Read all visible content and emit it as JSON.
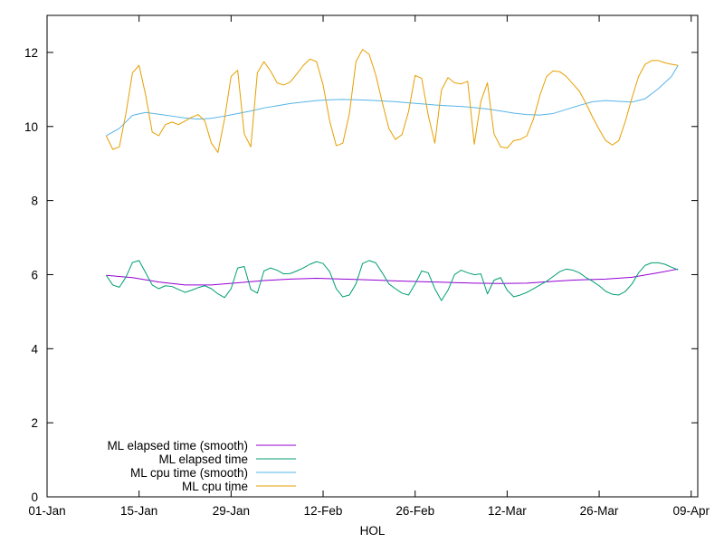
{
  "chart_data": {
    "type": "line",
    "xlabel": "HOL",
    "ylabel": "",
    "xlim": [
      "2024-01-01",
      "2024-04-09"
    ],
    "ylim": [
      0,
      13
    ],
    "x_ticks": [
      "01-Jan",
      "15-Jan",
      "29-Jan",
      "12-Feb",
      "26-Feb",
      "12-Mar",
      "26-Mar",
      "09-Apr"
    ],
    "y_ticks": [
      0,
      2,
      4,
      6,
      8,
      10,
      12
    ],
    "grid": false,
    "legend_position": "bottom-left",
    "series": [
      {
        "name": "ML elapsed time (smooth)",
        "color": "#9400d3",
        "x": [
          "2024-01-10",
          "2024-01-14",
          "2024-01-18",
          "2024-01-22",
          "2024-01-26",
          "2024-01-30",
          "2024-02-03",
          "2024-02-07",
          "2024-02-11",
          "2024-02-15",
          "2024-02-19",
          "2024-02-23",
          "2024-02-27",
          "2024-03-02",
          "2024-03-06",
          "2024-03-10",
          "2024-03-14",
          "2024-03-18",
          "2024-03-22",
          "2024-03-26",
          "2024-03-30",
          "2024-04-03",
          "2024-04-06"
        ],
        "values": [
          5.98,
          5.92,
          5.8,
          5.72,
          5.72,
          5.78,
          5.84,
          5.88,
          5.9,
          5.88,
          5.86,
          5.83,
          5.81,
          5.79,
          5.77,
          5.76,
          5.77,
          5.82,
          5.86,
          5.88,
          5.93,
          6.05,
          6.15
        ]
      },
      {
        "name": "ML elapsed time",
        "color": "#009e73",
        "x": [
          "2024-01-10",
          "2024-01-11",
          "2024-01-12",
          "2024-01-13",
          "2024-01-14",
          "2024-01-15",
          "2024-01-16",
          "2024-01-17",
          "2024-01-18",
          "2024-01-19",
          "2024-01-20",
          "2024-01-21",
          "2024-01-22",
          "2024-01-23",
          "2024-01-24",
          "2024-01-25",
          "2024-01-26",
          "2024-01-27",
          "2024-01-28",
          "2024-01-29",
          "2024-01-30",
          "2024-01-31",
          "2024-02-01",
          "2024-02-02",
          "2024-02-03",
          "2024-02-04",
          "2024-02-05",
          "2024-02-06",
          "2024-02-07",
          "2024-02-08",
          "2024-02-09",
          "2024-02-10",
          "2024-02-11",
          "2024-02-12",
          "2024-02-13",
          "2024-02-14",
          "2024-02-15",
          "2024-02-16",
          "2024-02-17",
          "2024-02-18",
          "2024-02-19",
          "2024-02-20",
          "2024-02-21",
          "2024-02-22",
          "2024-02-23",
          "2024-02-24",
          "2024-02-25",
          "2024-02-26",
          "2024-02-27",
          "2024-02-28",
          "2024-02-29",
          "2024-03-01",
          "2024-03-02",
          "2024-03-03",
          "2024-03-04",
          "2024-03-05",
          "2024-03-06",
          "2024-03-07",
          "2024-03-08",
          "2024-03-09",
          "2024-03-10",
          "2024-03-11",
          "2024-03-12",
          "2024-03-13",
          "2024-03-14",
          "2024-03-15",
          "2024-03-16",
          "2024-03-17",
          "2024-03-18",
          "2024-03-19",
          "2024-03-20",
          "2024-03-21",
          "2024-03-22",
          "2024-03-23",
          "2024-03-24",
          "2024-03-25",
          "2024-03-26",
          "2024-03-27",
          "2024-03-28",
          "2024-03-29",
          "2024-03-30",
          "2024-03-31",
          "2024-04-01",
          "2024-04-02",
          "2024-04-03",
          "2024-04-04",
          "2024-04-05",
          "2024-04-06"
        ],
        "values": [
          5.98,
          5.72,
          5.66,
          5.93,
          6.33,
          6.38,
          6.05,
          5.72,
          5.62,
          5.7,
          5.68,
          5.6,
          5.52,
          5.58,
          5.65,
          5.7,
          5.62,
          5.48,
          5.38,
          5.62,
          6.18,
          6.22,
          5.6,
          5.5,
          6.1,
          6.18,
          6.12,
          6.02,
          6.03,
          6.1,
          6.18,
          6.28,
          6.35,
          6.3,
          6.08,
          5.62,
          5.4,
          5.45,
          5.75,
          6.3,
          6.38,
          6.32,
          6.05,
          5.75,
          5.62,
          5.5,
          5.45,
          5.75,
          6.1,
          6.05,
          5.62,
          5.3,
          5.58,
          6.0,
          6.12,
          6.05,
          6.0,
          6.02,
          5.48,
          5.85,
          5.92,
          5.58,
          5.4,
          5.45,
          5.52,
          5.62,
          5.72,
          5.82,
          5.95,
          6.08,
          6.15,
          6.12,
          6.05,
          5.92,
          5.82,
          5.7,
          5.55,
          5.47,
          5.45,
          5.55,
          5.75,
          6.05,
          6.25,
          6.32,
          6.32,
          6.28,
          6.2,
          6.13
        ]
      },
      {
        "name": "ML cpu time (smooth)",
        "color": "#56b4e9",
        "x": [
          "2024-01-10",
          "2024-01-12",
          "2024-01-14",
          "2024-01-16",
          "2024-01-18",
          "2024-01-20",
          "2024-01-22",
          "2024-01-24",
          "2024-01-26",
          "2024-01-28",
          "2024-01-30",
          "2024-02-01",
          "2024-02-03",
          "2024-02-05",
          "2024-02-07",
          "2024-02-09",
          "2024-02-11",
          "2024-02-13",
          "2024-02-15",
          "2024-02-17",
          "2024-02-19",
          "2024-02-21",
          "2024-02-23",
          "2024-02-25",
          "2024-02-27",
          "2024-02-29",
          "2024-03-02",
          "2024-03-04",
          "2024-03-06",
          "2024-03-08",
          "2024-03-10",
          "2024-03-12",
          "2024-03-14",
          "2024-03-16",
          "2024-03-18",
          "2024-03-20",
          "2024-03-22",
          "2024-03-24",
          "2024-03-26",
          "2024-03-28",
          "2024-03-30",
          "2024-04-01",
          "2024-04-03",
          "2024-04-05",
          "2024-04-06"
        ],
        "values": [
          9.75,
          9.95,
          10.3,
          10.38,
          10.33,
          10.28,
          10.23,
          10.2,
          10.22,
          10.28,
          10.35,
          10.42,
          10.5,
          10.56,
          10.62,
          10.66,
          10.7,
          10.72,
          10.73,
          10.72,
          10.71,
          10.69,
          10.67,
          10.64,
          10.61,
          10.58,
          10.56,
          10.54,
          10.51,
          10.47,
          10.42,
          10.36,
          10.32,
          10.31,
          10.35,
          10.46,
          10.57,
          10.67,
          10.7,
          10.68,
          10.66,
          10.75,
          11.02,
          11.35,
          11.65
        ]
      },
      {
        "name": "ML cpu time",
        "color": "#e69f00",
        "x": [
          "2024-01-10",
          "2024-01-11",
          "2024-01-12",
          "2024-01-13",
          "2024-01-14",
          "2024-01-15",
          "2024-01-16",
          "2024-01-17",
          "2024-01-18",
          "2024-01-19",
          "2024-01-20",
          "2024-01-21",
          "2024-01-22",
          "2024-01-23",
          "2024-01-24",
          "2024-01-25",
          "2024-01-26",
          "2024-01-27",
          "2024-01-28",
          "2024-01-29",
          "2024-01-30",
          "2024-01-31",
          "2024-02-01",
          "2024-02-02",
          "2024-02-03",
          "2024-02-04",
          "2024-02-05",
          "2024-02-06",
          "2024-02-07",
          "2024-02-08",
          "2024-02-09",
          "2024-02-10",
          "2024-02-11",
          "2024-02-12",
          "2024-02-13",
          "2024-02-14",
          "2024-02-15",
          "2024-02-16",
          "2024-02-17",
          "2024-02-18",
          "2024-02-19",
          "2024-02-20",
          "2024-02-21",
          "2024-02-22",
          "2024-02-23",
          "2024-02-24",
          "2024-02-25",
          "2024-02-26",
          "2024-02-27",
          "2024-02-28",
          "2024-02-29",
          "2024-03-01",
          "2024-03-02",
          "2024-03-03",
          "2024-03-04",
          "2024-03-05",
          "2024-03-06",
          "2024-03-07",
          "2024-03-08",
          "2024-03-09",
          "2024-03-10",
          "2024-03-11",
          "2024-03-12",
          "2024-03-13",
          "2024-03-14",
          "2024-03-15",
          "2024-03-16",
          "2024-03-17",
          "2024-03-18",
          "2024-03-19",
          "2024-03-20",
          "2024-03-21",
          "2024-03-22",
          "2024-03-23",
          "2024-03-24",
          "2024-03-25",
          "2024-03-26",
          "2024-03-27",
          "2024-03-28",
          "2024-03-29",
          "2024-03-30",
          "2024-03-31",
          "2024-04-01",
          "2024-04-02",
          "2024-04-03",
          "2024-04-04",
          "2024-04-05",
          "2024-04-06"
        ],
        "values": [
          9.75,
          9.38,
          9.45,
          10.35,
          11.45,
          11.65,
          10.85,
          9.85,
          9.75,
          10.05,
          10.12,
          10.05,
          10.15,
          10.25,
          10.32,
          10.15,
          9.55,
          9.3,
          10.2,
          11.35,
          11.52,
          9.8,
          9.45,
          11.45,
          11.75,
          11.5,
          11.18,
          11.12,
          11.2,
          11.42,
          11.65,
          11.82,
          11.75,
          11.12,
          10.15,
          9.48,
          9.55,
          10.35,
          11.75,
          12.08,
          11.95,
          11.4,
          10.65,
          9.95,
          9.65,
          9.78,
          10.4,
          11.38,
          11.3,
          10.3,
          9.55,
          10.98,
          11.32,
          11.18,
          11.15,
          11.22,
          9.52,
          10.68,
          11.18,
          9.8,
          9.45,
          9.42,
          9.62,
          9.65,
          9.75,
          10.2,
          10.85,
          11.35,
          11.5,
          11.48,
          11.35,
          11.15,
          10.95,
          10.62,
          10.25,
          9.92,
          9.62,
          9.5,
          9.62,
          10.15,
          10.78,
          11.35,
          11.68,
          11.78,
          11.78,
          11.72,
          11.68,
          11.65
        ]
      }
    ]
  }
}
